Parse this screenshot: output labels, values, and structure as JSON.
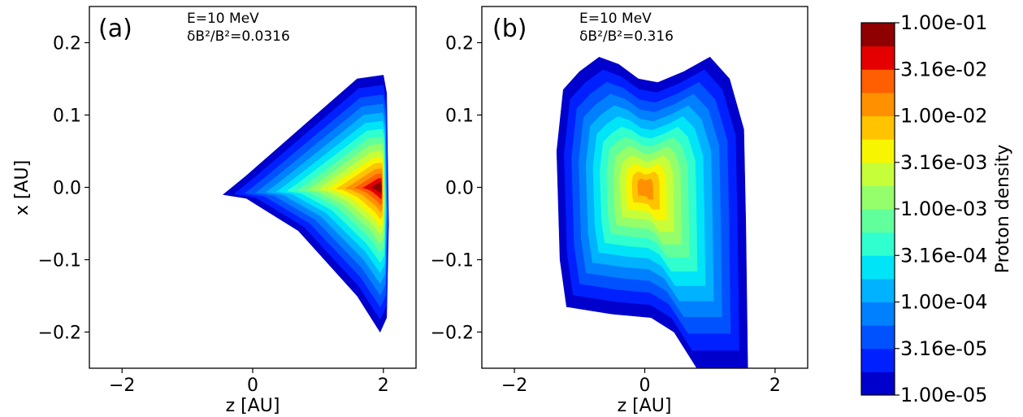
{
  "chart_data": [
    {
      "type": "heatmap",
      "panel_label": "(a)",
      "annotation_line1": "E=10 MeV",
      "annotation_line2": "δB²/B²=0.0316",
      "xlabel": "z [AU]",
      "ylabel": "x [AU]",
      "xlim": [
        -2.5,
        2.5
      ],
      "ylim": [
        -0.25,
        0.25
      ],
      "xticks": [
        -2,
        0,
        2
      ],
      "yticks": [
        0.2,
        0.1,
        0.0,
        -0.1,
        -0.2
      ],
      "xtick_labels": [
        "−2",
        "0",
        "2"
      ],
      "ytick_labels": [
        "0.2",
        "0.1",
        "0.0",
        "−0.1",
        "−0.2"
      ],
      "colorscale": "jet",
      "log_scale": true,
      "peak": {
        "z": 1.95,
        "x": 0.0,
        "density": 0.0316
      }
    },
    {
      "type": "heatmap",
      "panel_label": "(b)",
      "annotation_line1": "E=10 MeV",
      "annotation_line2": "δB²/B²=0.316",
      "xlabel": "z [AU]",
      "ylabel": "",
      "xlim": [
        -2.5,
        2.5
      ],
      "ylim": [
        -0.25,
        0.25
      ],
      "xticks": [
        -2,
        0,
        2
      ],
      "yticks": [
        0.2,
        0.1,
        0.0,
        -0.1,
        -0.2
      ],
      "xtick_labels": [
        "−2",
        "0",
        "2"
      ],
      "ytick_labels": [
        "0.2",
        "0.1",
        "0.0",
        "−0.1",
        "−0.2"
      ],
      "colorscale": "jet",
      "log_scale": true,
      "peak": {
        "z": 0.0,
        "x": 0.0,
        "density": 0.01
      }
    }
  ],
  "colorbar": {
    "label": "Proton density",
    "tick_labels": [
      "1.00e-01",
      "3.16e-02",
      "1.00e-02",
      "3.16e-03",
      "1.00e-03",
      "3.16e-04",
      "1.00e-04",
      "3.16e-05",
      "1.00e-05"
    ],
    "levels": 16,
    "colors": [
      "#00008f",
      "#0000cc",
      "#0020ff",
      "#0052ff",
      "#0080ff",
      "#00b2ff",
      "#00e4f8",
      "#30ffcf",
      "#62ff9d",
      "#94ff6b",
      "#c6ff39",
      "#f8f500",
      "#ffc300",
      "#ff9100",
      "#ff5f00",
      "#e40000",
      "#8f0000"
    ]
  }
}
